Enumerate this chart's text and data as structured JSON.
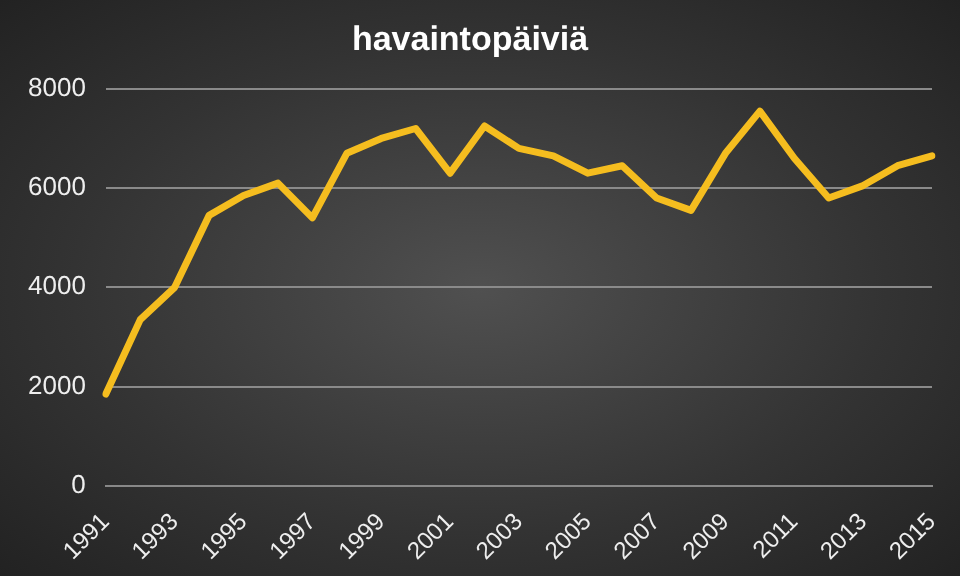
{
  "chart_data": {
    "type": "line",
    "title": "havaintopäiviä",
    "categories": [
      "1991",
      null,
      "1993",
      null,
      "1995",
      null,
      "1997",
      null,
      "1999",
      null,
      "2001",
      null,
      "2003",
      null,
      "2005",
      null,
      "2007",
      null,
      "2009",
      null,
      "2011",
      null,
      "2013",
      null,
      "2015"
    ],
    "series": [
      {
        "color": "#f5bd1f",
        "values": [
          1850,
          3350,
          4000,
          5450,
          5850,
          6100,
          5400,
          6700,
          7000,
          7200,
          6300,
          7250,
          6800,
          6650,
          6300,
          6450,
          5800,
          5550,
          6700,
          7550,
          6600,
          5800,
          6050,
          6450,
          6650
        ]
      }
    ],
    "ylim": [
      0,
      8000
    ],
    "yticks": [
      0,
      2000,
      4000,
      6000,
      8000
    ],
    "grid": "y",
    "legend": false,
    "marker": "none",
    "line_style": "solid"
  }
}
